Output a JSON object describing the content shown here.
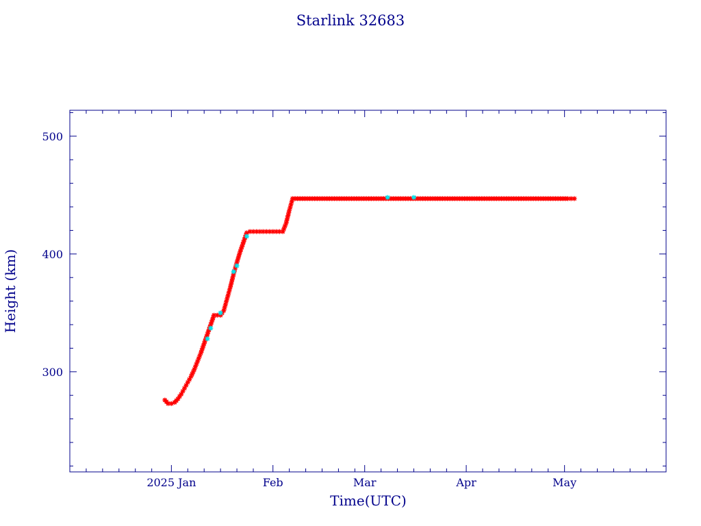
{
  "chart_data": {
    "type": "scatter",
    "title": "Starlink 32683",
    "xlabel": "Time(UTC)",
    "ylabel": "Height (km)",
    "xlim": [
      "2024-12-01",
      "2025-06-01"
    ],
    "ylim": [
      215,
      522
    ],
    "x_tick_labels": [
      {
        "date": "2025-01-01",
        "label": "2025 Jan"
      },
      {
        "date": "2025-02-01",
        "label": "Feb"
      },
      {
        "date": "2025-03-01",
        "label": "Mar"
      },
      {
        "date": "2025-04-01",
        "label": "Apr"
      },
      {
        "date": "2025-05-01",
        "label": "May"
      }
    ],
    "y_ticks": [
      300,
      400,
      500
    ],
    "grid": false,
    "colors": {
      "axes": "#00008b",
      "text": "#00008b",
      "series_primary": "#ff0000",
      "series_secondary": "#00e5ee",
      "line": "#00008b"
    },
    "series": [
      {
        "color": "#ff0000",
        "points": [
          [
            "2024-12-30",
            276
          ],
          [
            "2024-12-31",
            273
          ],
          [
            "2025-01-01",
            273
          ],
          [
            "2025-01-02",
            274
          ],
          [
            "2025-01-03",
            277
          ],
          [
            "2025-01-04",
            281
          ],
          [
            "2025-01-05",
            286
          ],
          [
            "2025-01-06",
            291
          ],
          [
            "2025-01-07",
            296
          ],
          [
            "2025-01-08",
            302
          ],
          [
            "2025-01-09",
            309
          ],
          [
            "2025-01-10",
            316
          ],
          [
            "2025-01-11",
            324
          ],
          [
            "2025-01-12",
            332
          ],
          [
            "2025-01-13",
            340
          ],
          [
            "2025-01-14",
            348
          ],
          [
            "2025-01-15",
            348
          ],
          [
            "2025-01-16",
            348
          ],
          [
            "2025-01-17",
            352
          ],
          [
            "2025-01-18",
            362
          ],
          [
            "2025-01-19",
            372
          ],
          [
            "2025-01-20",
            383
          ],
          [
            "2025-01-21",
            393
          ],
          [
            "2025-01-22",
            402
          ],
          [
            "2025-01-23",
            410
          ],
          [
            "2025-01-24",
            418
          ],
          [
            "2025-01-25",
            419
          ],
          [
            "2025-01-26",
            419
          ],
          [
            "2025-01-27",
            419
          ],
          [
            "2025-01-28",
            419
          ],
          [
            "2025-01-29",
            419
          ],
          [
            "2025-01-30",
            419
          ],
          [
            "2025-01-31",
            419
          ],
          [
            "2025-02-01",
            419
          ],
          [
            "2025-02-02",
            419
          ],
          [
            "2025-02-03",
            419
          ],
          [
            "2025-02-04",
            419
          ],
          [
            "2025-02-05",
            426
          ],
          [
            "2025-02-06",
            437
          ],
          [
            "2025-02-07",
            447
          ],
          [
            "2025-02-10",
            447
          ],
          [
            "2025-02-13",
            447
          ],
          [
            "2025-02-16",
            447
          ],
          [
            "2025-02-19",
            447
          ],
          [
            "2025-02-22",
            447
          ],
          [
            "2025-02-25",
            447
          ],
          [
            "2025-02-28",
            447
          ],
          [
            "2025-03-03",
            447
          ],
          [
            "2025-03-06",
            447
          ],
          [
            "2025-03-09",
            447
          ],
          [
            "2025-03-12",
            447
          ],
          [
            "2025-03-15",
            447
          ],
          [
            "2025-03-18",
            447
          ],
          [
            "2025-03-21",
            447
          ],
          [
            "2025-03-24",
            447
          ],
          [
            "2025-03-27",
            447
          ],
          [
            "2025-03-30",
            447
          ],
          [
            "2025-04-02",
            447
          ],
          [
            "2025-04-05",
            447
          ],
          [
            "2025-04-08",
            447
          ],
          [
            "2025-04-11",
            447
          ],
          [
            "2025-04-14",
            447
          ],
          [
            "2025-04-17",
            447
          ],
          [
            "2025-04-20",
            447
          ],
          [
            "2025-04-23",
            447
          ],
          [
            "2025-04-26",
            447
          ],
          [
            "2025-04-29",
            447
          ],
          [
            "2025-05-02",
            447
          ],
          [
            "2025-05-04",
            447
          ]
        ]
      },
      {
        "color": "#00e5ee",
        "points": [
          [
            "2025-01-12",
            328
          ],
          [
            "2025-01-13",
            337
          ],
          [
            "2025-01-16",
            350
          ],
          [
            "2025-01-20",
            385
          ],
          [
            "2025-01-21",
            390
          ],
          [
            "2025-01-24",
            415
          ],
          [
            "2025-03-08",
            448
          ],
          [
            "2025-03-16",
            448
          ]
        ]
      }
    ]
  }
}
